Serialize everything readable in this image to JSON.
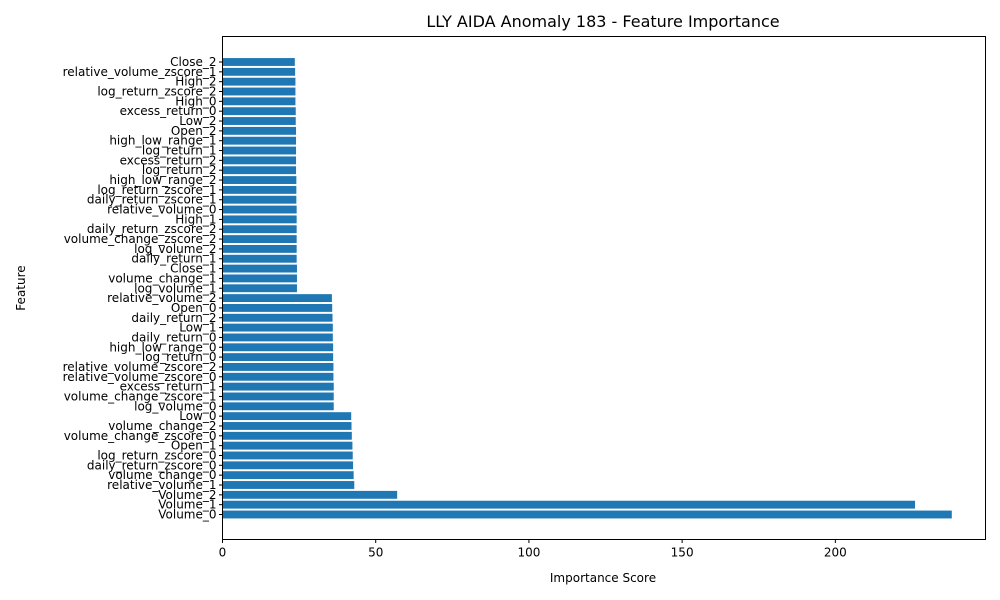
{
  "chart_data": {
    "type": "bar",
    "orientation": "horizontal",
    "title": "LLY AIDA Anomaly 183 - Feature Importance",
    "xlabel": "Importance Score",
    "ylabel": "Feature",
    "xlim": [
      0,
      249
    ],
    "xticks": [
      0,
      50,
      100,
      150,
      200
    ],
    "grid": false,
    "bar_color": "#1f77b4",
    "categories": [
      "Volume_0",
      "Volume_1",
      "Volume_2",
      "relative_volume_1",
      "volume_change_0",
      "daily_return_zscore_0",
      "log_return_zscore_0",
      "Open_1",
      "volume_change_zscore_0",
      "volume_change_2",
      "Low_0",
      "log_volume_0",
      "volume_change_zscore_1",
      "excess_return_1",
      "relative_volume_zscore_0",
      "relative_volume_zscore_2",
      "log_return_0",
      "high_low_range_0",
      "daily_return_0",
      "Low_1",
      "daily_return_2",
      "Open_0",
      "relative_volume_2",
      "log_volume_1",
      "volume_change_1",
      "Close_1",
      "daily_return_1",
      "log_volume_2",
      "volume_change_zscore_2",
      "daily_return_zscore_2",
      "High_1",
      "relative_volume_0",
      "daily_return_zscore_1",
      "log_return_zscore_1",
      "high_low_range_2",
      "log_return_2",
      "excess_return_2",
      "log_return_1",
      "high_low_range_1",
      "Open_2",
      "Low_2",
      "excess_return_0",
      "High_0",
      "log_return_zscore_2",
      "High_2",
      "relative_volume_zscore_1",
      "Close_2"
    ],
    "values": [
      238,
      226,
      57,
      43,
      42.8,
      42.6,
      42.5,
      42.4,
      42.2,
      42.1,
      42,
      36.3,
      36.3,
      36.3,
      36.2,
      36.2,
      36.1,
      36.1,
      36,
      36,
      35.9,
      35.8,
      35.7,
      24.3,
      24.3,
      24.3,
      24.2,
      24.2,
      24.2,
      24.2,
      24.2,
      24.2,
      24.1,
      24.1,
      24.1,
      24,
      24,
      24,
      24,
      24,
      23.9,
      23.9,
      23.8,
      23.8,
      23.8,
      23.7,
      23.6
    ]
  }
}
